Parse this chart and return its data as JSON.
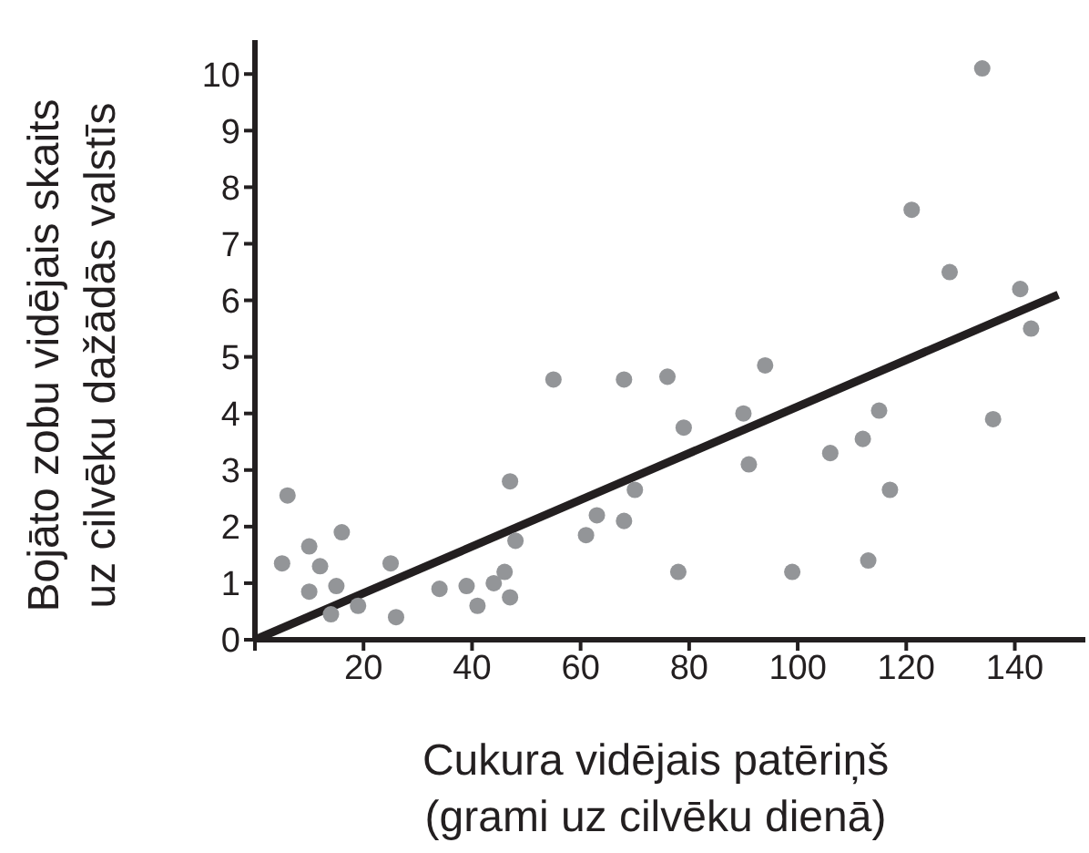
{
  "chart_data": {
    "type": "scatter",
    "xlabel": "Cukura vidējais patēriņš\n(grami uz cilvēku dienā)",
    "ylabel": "Bojāto zobu vidējais skaits\nuz cilvēku dažādās valstīs",
    "xlim": [
      0,
      153
    ],
    "ylim": [
      0,
      10.6
    ],
    "xticks": [
      {
        "value": 0,
        "label": null
      },
      20,
      40,
      60,
      80,
      100,
      120,
      140
    ],
    "yticks": [
      0,
      1,
      2,
      3,
      4,
      5,
      6,
      7,
      8,
      9,
      10
    ],
    "grid": false,
    "series": [
      {
        "color": "#939598",
        "marker": "circle",
        "x": [
          5,
          6,
          10,
          10,
          12,
          14,
          15,
          16,
          19,
          25,
          26,
          34,
          39,
          41,
          44,
          46,
          47,
          47,
          48,
          55,
          61,
          63,
          68,
          68,
          70,
          76,
          78,
          79,
          90,
          91,
          94,
          99,
          106,
          112,
          113,
          115,
          117,
          121,
          128,
          134,
          136,
          141,
          143
        ],
        "values": [
          1.35,
          2.55,
          0.85,
          1.65,
          1.3,
          0.45,
          0.95,
          1.9,
          0.6,
          1.35,
          0.4,
          0.9,
          0.95,
          0.6,
          1.0,
          1.2,
          0.75,
          2.8,
          1.75,
          4.6,
          1.85,
          2.2,
          2.1,
          4.6,
          2.65,
          4.65,
          1.2,
          3.75,
          4.0,
          3.1,
          4.85,
          1.2,
          3.3,
          3.55,
          1.4,
          4.05,
          2.65,
          7.6,
          6.5,
          10.1,
          3.9,
          6.2,
          5.5
        ]
      },
      {
        "type": "line",
        "color": "#231f20",
        "marker": "none",
        "line_style": "solid",
        "x": [
          0,
          148
        ],
        "values": [
          0,
          6.1
        ]
      }
    ]
  }
}
